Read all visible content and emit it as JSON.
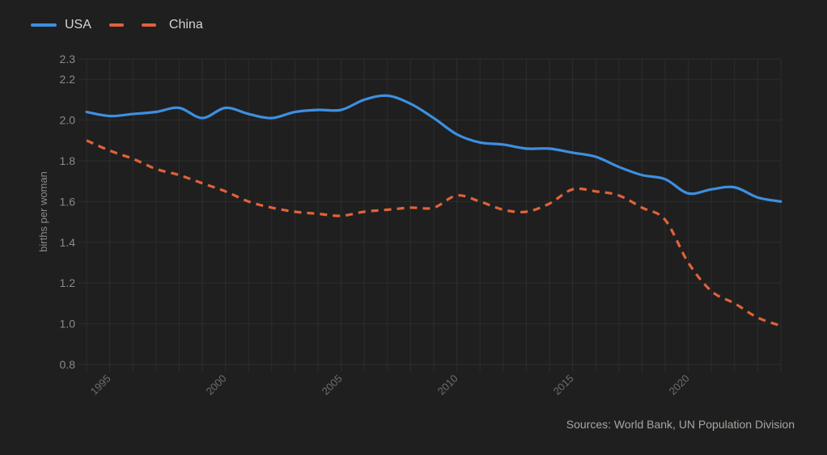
{
  "chart_data": {
    "type": "line",
    "title": "",
    "xlabel": "",
    "ylabel": "births per woman",
    "x": [
      1994,
      1995,
      1996,
      1997,
      1998,
      1999,
      2000,
      2001,
      2002,
      2003,
      2004,
      2005,
      2006,
      2007,
      2008,
      2009,
      2010,
      2011,
      2012,
      2013,
      2014,
      2015,
      2016,
      2017,
      2018,
      2019,
      2020,
      2021,
      2022,
      2023,
      2024
    ],
    "series": [
      {
        "name": "USA",
        "color": "#3d8fe0",
        "style": "solid",
        "values": [
          2.04,
          2.02,
          2.03,
          2.04,
          2.06,
          2.01,
          2.06,
          2.03,
          2.01,
          2.04,
          2.05,
          2.05,
          2.1,
          2.12,
          2.08,
          2.01,
          1.93,
          1.89,
          1.88,
          1.86,
          1.86,
          1.84,
          1.82,
          1.77,
          1.73,
          1.71,
          1.64,
          1.66,
          1.67,
          1.62,
          1.6
        ]
      },
      {
        "name": "China",
        "color": "#e0623a",
        "style": "dashed",
        "values": [
          1.9,
          1.85,
          1.81,
          1.76,
          1.73,
          1.69,
          1.65,
          1.6,
          1.57,
          1.55,
          1.54,
          1.53,
          1.55,
          1.56,
          1.57,
          1.57,
          1.63,
          1.6,
          1.56,
          1.55,
          1.59,
          1.66,
          1.65,
          1.63,
          1.57,
          1.51,
          1.3,
          1.16,
          1.1,
          1.03,
          0.99
        ]
      }
    ],
    "xlim": [
      1994,
      2024
    ],
    "ylim": [
      0.8,
      2.3
    ],
    "yticks": [
      0.8,
      1.0,
      1.2,
      1.4,
      1.6,
      1.8,
      2.0,
      2.2,
      2.3
    ],
    "ytick_labels": [
      "0.8",
      "1.0",
      "1.2",
      "1.4",
      "1.6",
      "1.8",
      "2.0",
      "2.2",
      "2.3"
    ],
    "xticks": [
      1995,
      2000,
      2005,
      2010,
      2015,
      2020
    ],
    "xtick_labels": [
      "1995",
      "2000",
      "2005",
      "2010",
      "2015",
      "2020"
    ],
    "grid": true,
    "legend_position": "top-left"
  },
  "legend": [
    {
      "label": "USA",
      "color": "#3d8fe0",
      "style": "solid"
    },
    {
      "label": "China",
      "color": "#e0623a",
      "style": "dashed"
    }
  ],
  "source": "Sources: World Bank, UN Population Division"
}
